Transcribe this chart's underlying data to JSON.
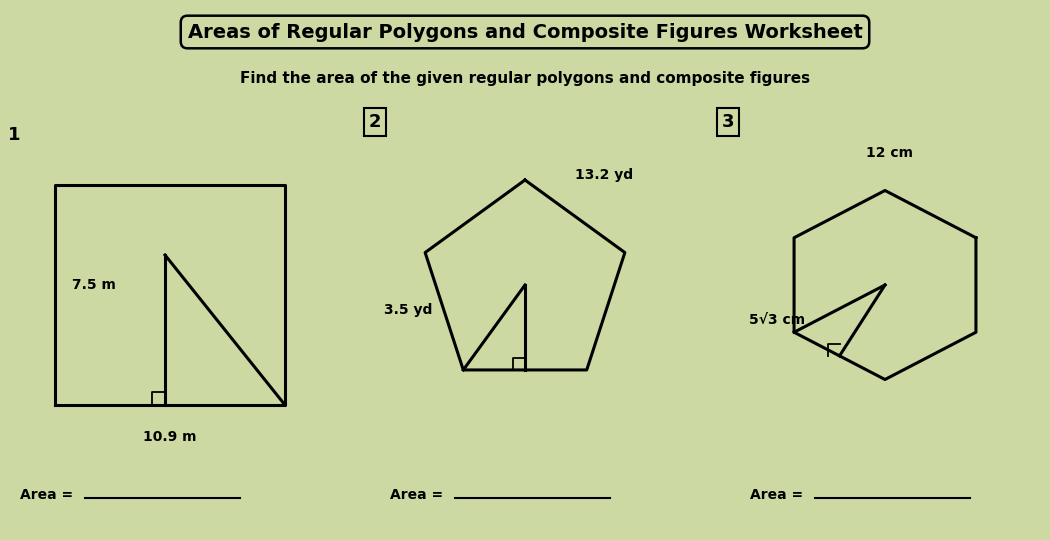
{
  "title": "Areas of Regular Polygons and Composite Figures Worksheet",
  "subtitle": "Find the area of the given regular polygons and composite figures",
  "bg_color": "#cdd9a3",
  "fig_width": 10.5,
  "fig_height": 5.4,
  "lw": 2.2,
  "title_fontsize": 14,
  "subtitle_fontsize": 11,
  "label_fontsize": 10,
  "num_fontsize": 13,
  "shapes": [
    {
      "label": "1",
      "dim_label1": "7.5 m",
      "dim_label2": "10.9 m",
      "area_label": "Area = "
    },
    {
      "label": "2",
      "dim_label1": "13.2 yd",
      "dim_label2": "3.5 yd",
      "area_label": "Area = "
    },
    {
      "label": "3",
      "dim_label1": "12 cm",
      "dim_label2": "5√3 cm",
      "area_label": "Area = "
    }
  ]
}
